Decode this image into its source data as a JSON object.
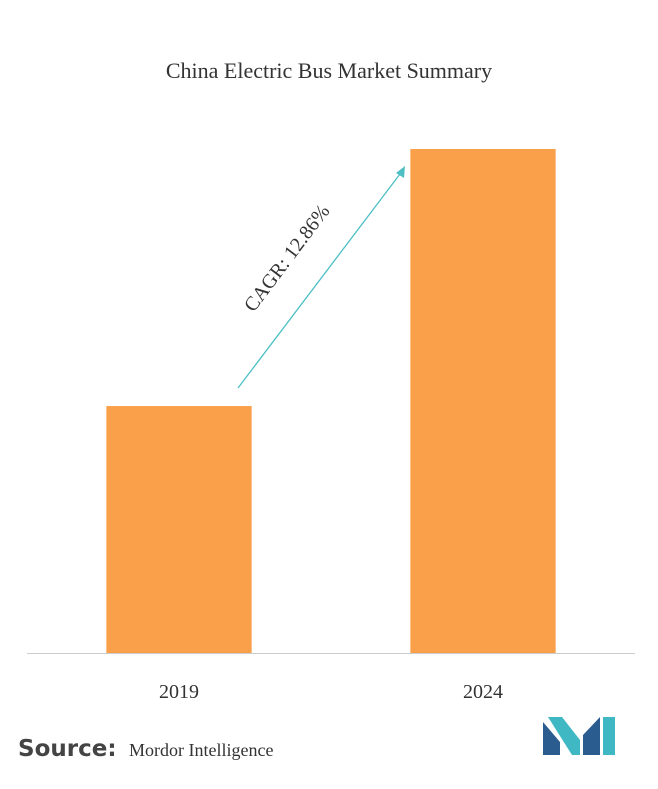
{
  "chart_data": {
    "type": "bar",
    "title": "China Electric Bus Market Summary",
    "categories": [
      "2019",
      "2024"
    ],
    "values": [
      49,
      100
    ],
    "color": "#fba04a",
    "ylim": [
      0,
      100
    ],
    "annotation": "CAGR: 12.86%",
    "source_label": "Source:",
    "source": "Mordor Intelligence"
  }
}
